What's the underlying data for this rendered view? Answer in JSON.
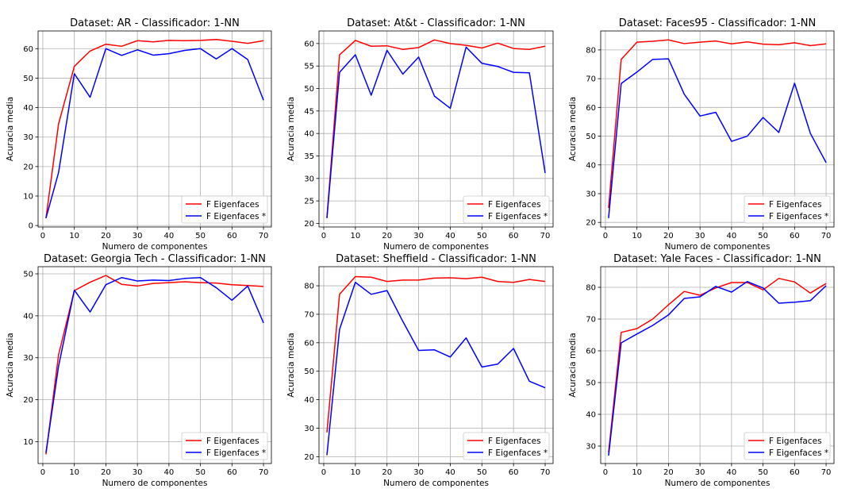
{
  "chart_data": [
    {
      "type": "line",
      "title": "Dataset: AR - Classificador: 1-NN",
      "xlabel": "Numero de componentes",
      "ylabel": "Acuracia media",
      "xlim": [
        -1.5,
        72.5
      ],
      "ylim": [
        -0.5,
        66
      ],
      "xticks": [
        0,
        10,
        20,
        30,
        40,
        50,
        60,
        70
      ],
      "yticks": [
        0,
        10,
        20,
        30,
        40,
        50,
        60
      ],
      "grid": true,
      "legend": "lower-right",
      "x": [
        1,
        5,
        10,
        15,
        20,
        25,
        30,
        35,
        40,
        45,
        50,
        55,
        60,
        65,
        70
      ],
      "series": [
        {
          "name": "F Eigenfaces",
          "color": "#ff0000",
          "values": [
            2.5,
            34.5,
            54.0,
            59.2,
            61.5,
            60.8,
            62.7,
            62.3,
            62.8,
            62.7,
            62.8,
            63.1,
            62.5,
            61.8,
            62.7
          ]
        },
        {
          "name": "F Eigenfaces *",
          "color": "#0000ff",
          "values": [
            2.5,
            18.0,
            51.5,
            43.5,
            60.0,
            57.7,
            59.6,
            57.8,
            58.3,
            59.4,
            60.0,
            56.5,
            60.0,
            56.3,
            42.5
          ]
        }
      ]
    },
    {
      "type": "line",
      "title": "Dataset: At&t - Classificador: 1-NN",
      "xlabel": "Numero de componentes",
      "ylabel": "Acuracia media",
      "xlim": [
        -1.5,
        72.5
      ],
      "ylim": [
        19.2,
        62.8
      ],
      "xticks": [
        0,
        10,
        20,
        30,
        40,
        50,
        60,
        70
      ],
      "yticks": [
        20,
        25,
        30,
        35,
        40,
        45,
        50,
        55,
        60
      ],
      "grid": true,
      "legend": "lower-right",
      "x": [
        1,
        5,
        10,
        15,
        20,
        25,
        30,
        35,
        40,
        45,
        50,
        55,
        60,
        65,
        70
      ],
      "series": [
        {
          "name": "F Eigenfaces",
          "color": "#ff0000",
          "values": [
            21.2,
            57.5,
            60.7,
            59.4,
            59.5,
            58.7,
            59.1,
            60.8,
            60.0,
            59.6,
            59.0,
            60.1,
            58.9,
            58.7,
            59.4
          ]
        },
        {
          "name": "F Eigenfaces *",
          "color": "#0000ff",
          "values": [
            21.2,
            53.6,
            57.5,
            48.5,
            58.5,
            53.2,
            57.0,
            48.3,
            45.6,
            59.2,
            55.6,
            54.9,
            53.6,
            53.5,
            31.2
          ]
        }
      ]
    },
    {
      "type": "line",
      "title": "Dataset: Faces95 - Classificador: 1-NN",
      "xlabel": "Numero de componentes",
      "ylabel": "Acuracia media",
      "xlim": [
        -1.5,
        72.5
      ],
      "ylim": [
        18.4,
        86.6
      ],
      "xticks": [
        0,
        10,
        20,
        30,
        40,
        50,
        60,
        70
      ],
      "yticks": [
        20,
        30,
        40,
        50,
        60,
        70,
        80
      ],
      "grid": true,
      "legend": "lower-right",
      "x": [
        1,
        5,
        10,
        15,
        20,
        25,
        30,
        35,
        40,
        45,
        50,
        55,
        60,
        65,
        70
      ],
      "series": [
        {
          "name": "F Eigenfaces",
          "color": "#ff0000",
          "values": [
            25.0,
            76.7,
            82.7,
            83.0,
            83.5,
            82.2,
            82.7,
            83.1,
            82.1,
            82.8,
            82.0,
            81.8,
            82.5,
            81.5,
            82.1
          ]
        },
        {
          "name": "F Eigenfaces *",
          "color": "#0000ff",
          "values": [
            21.5,
            68.3,
            72.3,
            76.7,
            76.9,
            64.6,
            57.0,
            58.3,
            48.2,
            50.0,
            56.5,
            51.3,
            68.4,
            51.0,
            40.8
          ]
        }
      ]
    },
    {
      "type": "line",
      "title": "Dataset: Georgia Tech - Classificador: 1-NN",
      "xlabel": "Numero de componentes",
      "ylabel": "Acuracia media",
      "xlim": [
        -1.5,
        72.5
      ],
      "ylim": [
        4.8,
        51.7
      ],
      "xticks": [
        0,
        10,
        20,
        30,
        40,
        50,
        60,
        70
      ],
      "yticks": [
        10,
        20,
        30,
        40,
        50
      ],
      "grid": true,
      "legend": "lower-right",
      "x": [
        1,
        5,
        10,
        15,
        20,
        25,
        30,
        35,
        40,
        45,
        50,
        55,
        60,
        65,
        70
      ],
      "series": [
        {
          "name": "F Eigenfaces",
          "color": "#ff0000",
          "values": [
            7.0,
            30.7,
            46.0,
            48.0,
            49.6,
            47.5,
            47.1,
            47.7,
            47.9,
            48.1,
            47.9,
            47.8,
            47.4,
            47.2,
            47.0
          ]
        },
        {
          "name": "F Eigenfaces *",
          "color": "#0000ff",
          "values": [
            7.4,
            28.0,
            46.1,
            40.9,
            47.4,
            49.1,
            48.3,
            48.5,
            48.4,
            48.9,
            49.1,
            46.7,
            43.7,
            47.1,
            38.3
          ]
        }
      ]
    },
    {
      "type": "line",
      "title": "Dataset: Sheffield - Classificador: 1-NN",
      "xlabel": "Numero de componentes",
      "ylabel": "Acuracia media",
      "xlim": [
        -1.5,
        72.5
      ],
      "ylim": [
        17.6,
        86.7
      ],
      "xticks": [
        0,
        10,
        20,
        30,
        40,
        50,
        60,
        70
      ],
      "yticks": [
        20,
        30,
        40,
        50,
        60,
        70,
        80
      ],
      "grid": true,
      "legend": "lower-right",
      "x": [
        1,
        5,
        10,
        15,
        20,
        25,
        30,
        35,
        40,
        45,
        50,
        55,
        60,
        65,
        70
      ],
      "series": [
        {
          "name": "F Eigenfaces",
          "color": "#ff0000",
          "values": [
            28.5,
            77.0,
            83.2,
            83.0,
            81.5,
            82.0,
            82.0,
            82.7,
            82.8,
            82.5,
            83.0,
            81.5,
            81.2,
            82.2,
            81.5
          ]
        },
        {
          "name": "F Eigenfaces *",
          "color": "#0000ff",
          "values": [
            20.5,
            64.7,
            81.2,
            77.0,
            78.3,
            67.5,
            57.3,
            57.5,
            55.0,
            61.7,
            51.5,
            52.5,
            58.0,
            46.5,
            44.2
          ]
        }
      ]
    },
    {
      "type": "line",
      "title": "Dataset: Yale Faces - Classificador: 1-NN",
      "xlabel": "Numero de componentes",
      "ylabel": "Acuracia media",
      "xlim": [
        -1.5,
        72.5
      ],
      "ylim": [
        24.5,
        86.5
      ],
      "xticks": [
        0,
        10,
        20,
        30,
        40,
        50,
        60,
        70
      ],
      "yticks": [
        30,
        40,
        50,
        60,
        70,
        80
      ],
      "grid": true,
      "legend": "lower-right",
      "x": [
        1,
        5,
        10,
        15,
        20,
        25,
        30,
        35,
        40,
        45,
        50,
        55,
        60,
        65,
        70
      ],
      "series": [
        {
          "name": "F Eigenfaces",
          "color": "#ff0000",
          "values": [
            28.0,
            65.8,
            67.0,
            70.0,
            74.5,
            78.7,
            77.5,
            79.8,
            81.5,
            81.5,
            79.2,
            82.8,
            81.7,
            78.2,
            81.2
          ]
        },
        {
          "name": "F Eigenfaces *",
          "color": "#0000ff",
          "values": [
            27.0,
            62.5,
            65.3,
            68.0,
            71.3,
            76.5,
            77.0,
            80.3,
            78.5,
            81.8,
            79.8,
            75.0,
            75.3,
            75.8,
            80.5
          ]
        }
      ]
    }
  ]
}
